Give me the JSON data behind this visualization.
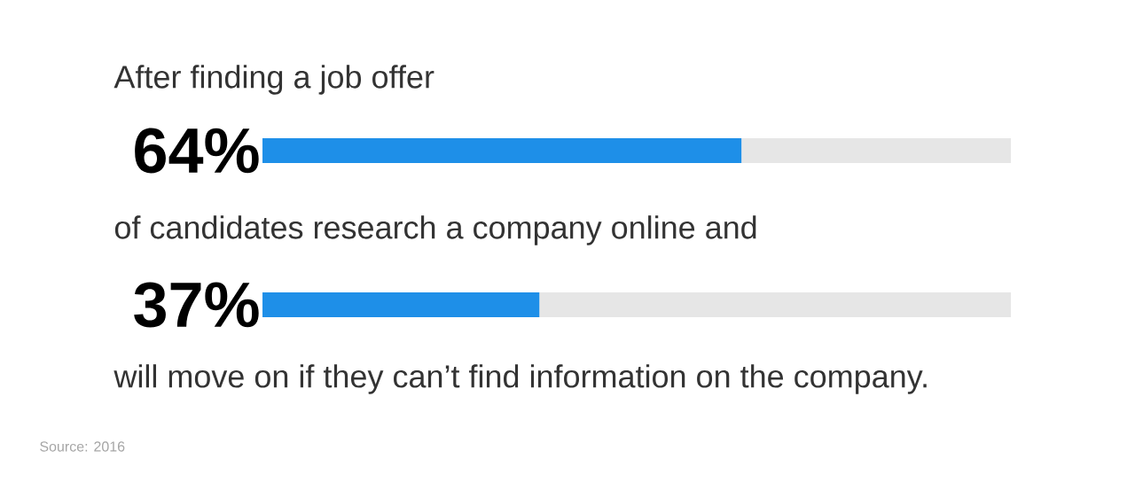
{
  "chart_data": {
    "type": "bar",
    "orientation": "horizontal",
    "stacked": true,
    "categories": [
      null,
      null
    ],
    "series": [
      {
        "color": "#1e8fe8",
        "values": [
          64,
          37
        ],
        "value_labels": [
          "64%",
          "37%"
        ]
      },
      {
        "color": "#e6e6e6",
        "values": [
          36,
          63
        ]
      }
    ],
    "xlim": [
      0,
      100
    ],
    "tick_labels": false,
    "annotations": [
      "After finding a job offer",
      "of candidates research a company online and",
      "will move on if they can’t find information on the company.",
      "Source: 2016"
    ]
  }
}
